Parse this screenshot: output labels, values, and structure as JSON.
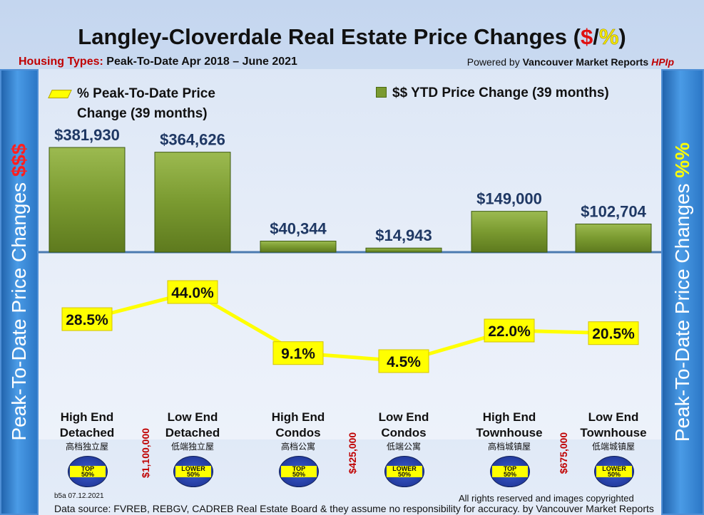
{
  "header": {
    "title_main": "Langley-Cloverdale Real Estate Price Changes (",
    "title_dollar": "$",
    "title_slash": "/",
    "title_pct": "%",
    "title_close": ")",
    "subtitle_label": "Housing Types:",
    "subtitle_range": " Peak-To-Date Apr 2018 – June 2021",
    "powered_prefix": "Powered by ",
    "powered_brand": "Vancouver Market Reports ",
    "powered_hpi": "HPIp"
  },
  "side": {
    "left_text": "Peak-To-Date Price Changes ",
    "left_accent": "$$$",
    "right_text": "Peak-To-Date  Price  Changes  ",
    "right_accent": "%%"
  },
  "legend": {
    "pct_line1": "% Peak-To-Date Price",
    "pct_line2": "Change (39 months)",
    "dollar": "$$ YTD Price Change (39 months)"
  },
  "chart_data": {
    "type": "bar",
    "categories": [
      "High End Detached",
      "Low End Detached",
      "High End Condos",
      "Low End Condos",
      "High End Townhouse",
      "Low End Townhouse"
    ],
    "series": [
      {
        "name": "$$ YTD Price Change (39 months)",
        "type": "bar",
        "values": [
          381930,
          364626,
          40344,
          14943,
          149000,
          102704
        ],
        "labels": [
          "$381,930",
          "$364,626",
          "$40,344",
          "$14,943",
          "$149,000",
          "$102,704"
        ],
        "color": "#7a9a30"
      },
      {
        "name": "% Peak-To-Date Price Change (39 months)",
        "type": "line",
        "values": [
          28.5,
          44.0,
          9.1,
          4.5,
          22.0,
          20.5
        ],
        "labels": [
          "28.5%",
          "44.0%",
          "9.1%",
          "4.5%",
          "22.0%",
          "20.5%"
        ],
        "color": "#ffff00"
      }
    ],
    "ylim_dollar": [
      0,
      381930
    ],
    "ylim_pct": [
      0,
      44
    ]
  },
  "categories_display": [
    {
      "line1": "High End",
      "line2": "Detached",
      "cn": "高档独立屋",
      "badge_top": "TOP",
      "badge_bottom": "50%"
    },
    {
      "line1": "Low End",
      "line2": "Detached",
      "cn": "低端独立屋",
      "badge_top": "LOWER",
      "badge_bottom": "50%"
    },
    {
      "line1": "High End",
      "line2": "Condos",
      "cn": "高档公寓",
      "badge_top": "TOP",
      "badge_bottom": "50%"
    },
    {
      "line1": "Low End",
      "line2": "Condos",
      "cn": "低端公寓",
      "badge_top": "LOWER",
      "badge_bottom": "50%"
    },
    {
      "line1": "High End",
      "line2": "Townhouse",
      "cn": "高档城镇屋",
      "badge_top": "TOP",
      "badge_bottom": "50%"
    },
    {
      "line1": "Low End",
      "line2": "Townhouse",
      "cn": "低端城镇屋",
      "badge_top": "LOWER",
      "badge_bottom": "50%"
    }
  ],
  "price_thresholds": [
    "$1,100,000",
    "$425,000",
    "$675,000"
  ],
  "footer": {
    "code": "b5a 07.12.2021",
    "rights": "All rights reserved and  images copyrighted",
    "source": "Data source: FVREB, REBGV, CADREB Real Estate Board & they assume no responsibility for accuracy. by Vancouver Market Reports"
  }
}
